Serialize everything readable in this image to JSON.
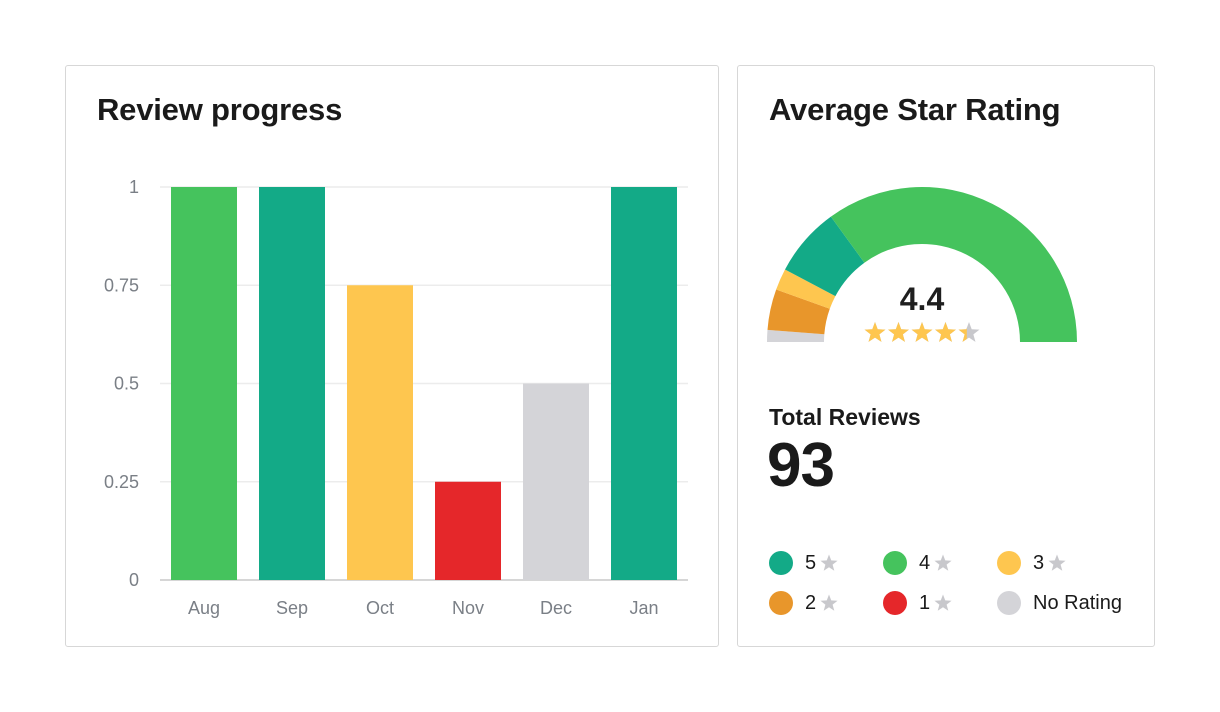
{
  "progress_card": {
    "title": "Review progress"
  },
  "rating_card": {
    "title": "Average Star Rating",
    "average": "4.4",
    "stars_filled": 4.4,
    "stars_total": 5,
    "total_label": "Total Reviews",
    "total_value": "93",
    "legend": [
      {
        "label": "5",
        "star": true,
        "color": "#13aa87"
      },
      {
        "label": "4",
        "star": true,
        "color": "#45c35d"
      },
      {
        "label": "3",
        "star": true,
        "color": "#fec64f"
      },
      {
        "label": "2",
        "star": true,
        "color": "#e8962b"
      },
      {
        "label": "1",
        "star": true,
        "color": "#e5272a"
      },
      {
        "label": "No Rating",
        "star": false,
        "color": "#d4d4d8"
      }
    ],
    "gauge_segments": [
      {
        "name": "No Rating",
        "fraction": 0.025,
        "color": "#d4d4d8"
      },
      {
        "name": "2",
        "fraction": 0.085,
        "color": "#e8962b"
      },
      {
        "name": "3",
        "fraction": 0.045,
        "color": "#fec64f"
      },
      {
        "name": "5",
        "fraction": 0.145,
        "color": "#13aa87"
      },
      {
        "name": "4",
        "fraction": 0.7,
        "color": "#45c35d"
      }
    ],
    "star_color": "#fec64f",
    "star_empty_color": "#c8c8cc"
  },
  "chart_data": {
    "type": "bar",
    "title": "Review progress",
    "categories": [
      "Aug",
      "Sep",
      "Oct",
      "Nov",
      "Dec",
      "Jan"
    ],
    "values": [
      1,
      1,
      0.75,
      0.25,
      0.5,
      1
    ],
    "colors": [
      "#45c35d",
      "#13aa87",
      "#fec64f",
      "#e5272a",
      "#d4d4d8",
      "#13aa87"
    ],
    "yticks": [
      "0",
      "0.25",
      "0.5",
      "0.75",
      "1"
    ],
    "ylim": [
      0,
      1
    ],
    "grid": true,
    "xlabel": "",
    "ylabel": ""
  }
}
